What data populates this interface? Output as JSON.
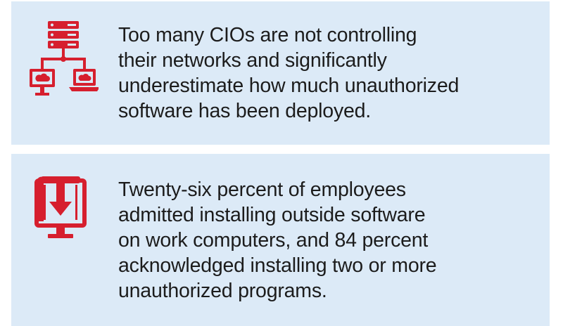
{
  "colors": {
    "card_background": "#dceaf7",
    "icon_red": "#d61f2e",
    "text": "#1c1c1c"
  },
  "cards": [
    {
      "icon": "network-server-icon",
      "lines": [
        "Too many CIOs are not controlling",
        "their networks and significantly",
        "underestimate how much unauthorized",
        "software has been deployed."
      ]
    },
    {
      "icon": "software-download-icon",
      "lines": [
        "Twenty-six percent of employees",
        "admitted installing outside software",
        "on work computers, and 84 percent",
        "acknowledged installing two or more",
        "unauthorized programs."
      ]
    }
  ]
}
